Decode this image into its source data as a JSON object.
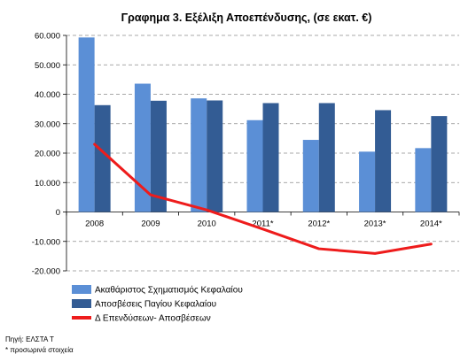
{
  "chart_data": {
    "type": "bar",
    "title": "Γραφημα 3. Εξέλιξη Αποεπένδυσης, (σε εκατ. €)",
    "categories": [
      "2008",
      "2009",
      "2010",
      "2011*",
      "2012*",
      "2013*",
      "2014*"
    ],
    "series": [
      {
        "name": "Ακαθάριστος Σχηματισμός Κεφαλαίου",
        "kind": "bar",
        "color": "#5b8fd6",
        "values": [
          59300,
          43600,
          38600,
          31200,
          24500,
          20500,
          21700
        ]
      },
      {
        "name": "Αποσβέσεις Παγίου Κεφαλαίου",
        "kind": "bar",
        "color": "#335c94",
        "values": [
          36300,
          37800,
          37900,
          37000,
          37000,
          34600,
          32600
        ]
      },
      {
        "name": "Δ Επενδύσεων- Αποσβέσεων",
        "kind": "line",
        "color": "#ee1c1c",
        "values": [
          23000,
          5800,
          700,
          -5800,
          -12500,
          -14100,
          -10900
        ]
      }
    ],
    "y_ticks": [
      "60.000",
      "50.000",
      "40.000",
      "30.000",
      "20.000",
      "10.000",
      "0",
      "-10.000",
      "-20.000"
    ],
    "ylim": [
      -20000,
      60000
    ],
    "grid": "dashed horizontal",
    "legend_position": "bottom-left"
  },
  "notes": {
    "source": "Πηγή: ΕΛΣΤΑ Τ",
    "provisional": "* προσωρινά στοιχεία"
  }
}
